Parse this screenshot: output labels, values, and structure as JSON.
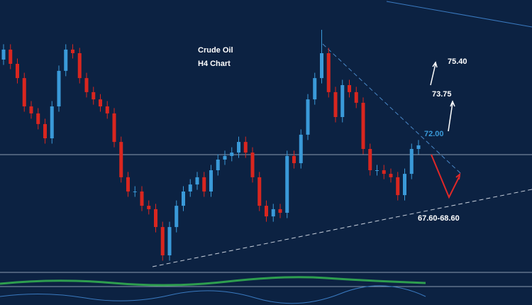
{
  "chart_data": {
    "type": "candlestick",
    "title": "Crude Oil",
    "subtitle": "H4  Chart",
    "annotations": [
      "75.40",
      "73.75",
      "72.00",
      "67.60-68.60"
    ],
    "up_color": "#3a9ad9",
    "down_color": "#d9261f",
    "ylim": [
      64.2,
      77
    ],
    "open": [
      74.2,
      74.67,
      74.0,
      73.33,
      72.0,
      71.67,
      71.17,
      70.5,
      72.0,
      73.67,
      74.67,
      74.5,
      73.33,
      72.67,
      72.33,
      72.0,
      71.67,
      70.33,
      68.67,
      68.0,
      68.0,
      67.33,
      67.17,
      66.33,
      65.0,
      66.33,
      67.33,
      68.0,
      68.33,
      68.67,
      68.0,
      69.0,
      69.5,
      69.67,
      69.83,
      70.33,
      69.83,
      68.67,
      67.33,
      66.83,
      67.17,
      67.0,
      69.67,
      69.33,
      70.67,
      72.33,
      73.33,
      74.5,
      72.67,
      71.5,
      73.0,
      72.67,
      72.17,
      70.0,
      69.0,
      69.0,
      68.83,
      68.67,
      67.83,
      68.83,
      70.0
    ],
    "high": [
      74.92,
      74.92,
      74.25,
      73.58,
      72.25,
      71.92,
      71.42,
      72.25,
      73.92,
      74.92,
      74.92,
      74.75,
      73.58,
      72.92,
      72.58,
      72.25,
      71.92,
      70.58,
      68.92,
      68.25,
      68.25,
      67.58,
      67.42,
      66.58,
      66.58,
      67.58,
      68.25,
      68.58,
      68.92,
      68.92,
      69.25,
      69.75,
      69.92,
      70.08,
      70.58,
      70.58,
      70.08,
      68.92,
      67.58,
      67.42,
      67.42,
      69.92,
      69.92,
      70.92,
      72.58,
      73.58,
      75.6,
      74.75,
      72.92,
      73.25,
      73.25,
      72.92,
      72.42,
      70.25,
      69.25,
      69.25,
      69.08,
      68.92,
      69.08,
      70.25,
      70.42
    ],
    "low": [
      73.95,
      73.75,
      73.08,
      71.75,
      71.42,
      70.92,
      70.25,
      70.25,
      71.75,
      73.42,
      74.25,
      73.08,
      72.42,
      72.08,
      71.75,
      71.42,
      70.08,
      68.42,
      67.75,
      67.75,
      67.08,
      66.92,
      66.08,
      64.75,
      64.75,
      66.08,
      67.08,
      67.75,
      68.08,
      67.75,
      67.75,
      68.75,
      69.25,
      69.42,
      69.58,
      69.58,
      68.42,
      67.08,
      66.58,
      66.58,
      66.75,
      66.75,
      69.08,
      69.08,
      70.42,
      72.08,
      73.08,
      72.42,
      71.25,
      71.25,
      72.42,
      71.92,
      69.75,
      68.75,
      68.75,
      68.58,
      68.42,
      67.58,
      67.58,
      68.58,
      69.75
    ],
    "close": [
      74.67,
      74.0,
      73.33,
      72.0,
      71.67,
      71.17,
      70.5,
      72.0,
      73.67,
      74.67,
      74.5,
      73.33,
      72.67,
      72.33,
      72.0,
      71.67,
      70.33,
      68.67,
      68.0,
      68.0,
      67.33,
      67.17,
      66.33,
      65.0,
      66.33,
      67.33,
      68.0,
      68.33,
      68.67,
      68.0,
      69.0,
      69.5,
      69.67,
      69.83,
      70.33,
      69.83,
      68.67,
      67.33,
      66.83,
      67.17,
      67.0,
      69.67,
      69.33,
      70.67,
      72.33,
      73.33,
      74.5,
      72.67,
      71.5,
      73.0,
      72.67,
      72.17,
      70.0,
      69.0,
      69.0,
      68.83,
      68.67,
      67.83,
      68.83,
      70.0,
      70.17
    ]
  }
}
